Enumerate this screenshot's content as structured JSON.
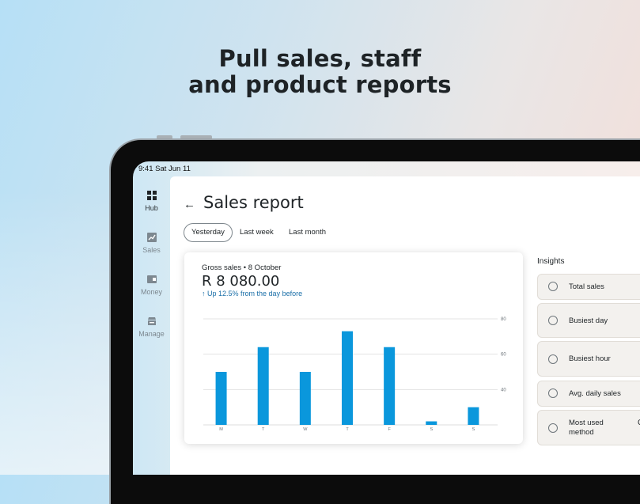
{
  "headline": {
    "line1": "Pull sales, staff",
    "line2": "and product reports"
  },
  "status_bar": {
    "time_date": "9:41  Sat Jun 11"
  },
  "sidebar": {
    "items": [
      {
        "label": "Hub",
        "icon": "grid-icon",
        "active": true
      },
      {
        "label": "Sales",
        "icon": "chart-icon",
        "active": false
      },
      {
        "label": "Money",
        "icon": "wallet-icon",
        "active": false
      },
      {
        "label": "Manage",
        "icon": "store-icon",
        "active": false
      }
    ]
  },
  "page": {
    "title": "Sales report",
    "back_icon": "arrow-left-icon"
  },
  "tabs": [
    {
      "label": "Yesterday",
      "selected": true
    },
    {
      "label": "Last week",
      "selected": false
    },
    {
      "label": "Last month",
      "selected": false
    }
  ],
  "summary": {
    "label": "Gross sales • 8 October",
    "value": "R 8 080.00",
    "trend_arrow": "↑",
    "trend": "Up 12.5% from the day before"
  },
  "chart_data": {
    "type": "bar",
    "categories": [
      "M",
      "T",
      "W",
      "T",
      "F",
      "S",
      "S"
    ],
    "values": [
      50,
      64,
      50,
      73,
      64,
      22,
      30
    ],
    "y_ticks": [
      "80",
      "60",
      "40"
    ],
    "ylim": [
      20,
      80
    ],
    "grid": true,
    "bar_color": "#0a97dc"
  },
  "insights": {
    "title": "Insights",
    "items": [
      {
        "label": "Total sales",
        "value": ""
      },
      {
        "label": "Busiest day",
        "value": ""
      },
      {
        "label": "Busiest hour",
        "value": ""
      },
      {
        "label": "Avg. daily sales",
        "value": ""
      },
      {
        "label": "Most used method",
        "value": "C"
      }
    ]
  }
}
